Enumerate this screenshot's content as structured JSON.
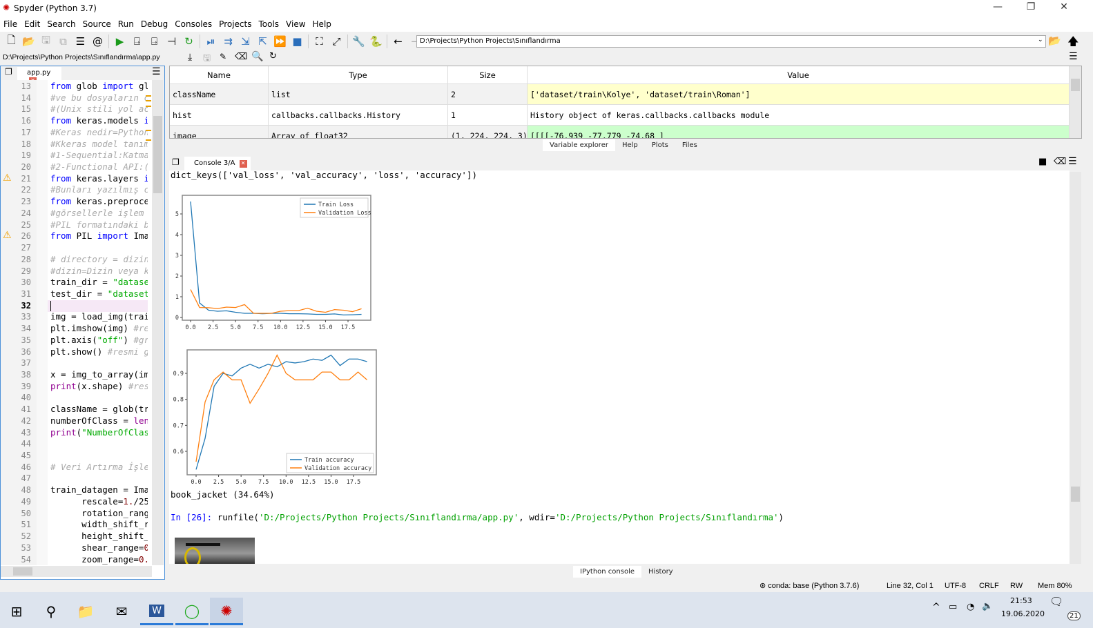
{
  "window": {
    "title": "Spyder (Python 3.7)",
    "minimize": "—",
    "restore": "❐",
    "close": "✕"
  },
  "menu": [
    "File",
    "Edit",
    "Search",
    "Source",
    "Run",
    "Debug",
    "Consoles",
    "Projects",
    "Tools",
    "View",
    "Help"
  ],
  "toolbar": {
    "path": "D:\\Projects\\Python Projects\\Sınıflandırma",
    "icons": [
      "new-file",
      "open-file",
      "save",
      "save-all",
      "outline",
      "at",
      "run",
      "run-cell",
      "run-cell-advance",
      "run-selection",
      "rerun",
      "debug",
      "step",
      "step-into",
      "step-return",
      "continue",
      "stop",
      "maximize",
      "fullscreen",
      "preferences",
      "python-path",
      "back",
      "forward"
    ]
  },
  "editor": {
    "file_path": "D:\\Projects\\Python Projects\\Sınıflandırma\\app.py",
    "tab": "app.py",
    "current_line": 32,
    "lines": [
      {
        "n": 13,
        "s": [
          [
            "from ",
            "k"
          ],
          [
            "glob ",
            ""
          ],
          [
            "import ",
            "k"
          ],
          [
            "glob",
            ""
          ]
        ]
      },
      {
        "n": 14,
        "s": [
          [
            "#ve bu dosyaların c",
            "c"
          ]
        ]
      },
      {
        "n": 15,
        "s": [
          [
            "#(Unix stili yol ac",
            "c"
          ]
        ]
      },
      {
        "n": 16,
        "s": [
          [
            "from ",
            "k"
          ],
          [
            "keras.models ",
            ""
          ],
          [
            "import",
            "k"
          ]
        ]
      },
      {
        "n": 17,
        "s": [
          [
            "#Keras nedir=Python",
            "c"
          ]
        ]
      },
      {
        "n": 18,
        "s": [
          [
            "#Kkeras model tanım",
            "c"
          ]
        ]
      },
      {
        "n": 19,
        "s": [
          [
            "#1-Sequential:Katma",
            "c"
          ]
        ]
      },
      {
        "n": 20,
        "s": [
          [
            "#2-Functional API:(",
            "c"
          ]
        ]
      },
      {
        "n": 21,
        "s": [
          [
            "from ",
            "k"
          ],
          [
            "keras.layers ",
            ""
          ],
          [
            "import",
            "k"
          ]
        ],
        "warn": true
      },
      {
        "n": 22,
        "s": [
          [
            "#Bunları yazılmış c",
            "c"
          ]
        ]
      },
      {
        "n": 23,
        "s": [
          [
            "from ",
            "k"
          ],
          [
            "keras.preprocessing",
            ""
          ]
        ]
      },
      {
        "n": 24,
        "s": [
          [
            "#görsellerle işlem",
            "c"
          ]
        ]
      },
      {
        "n": 25,
        "s": [
          [
            "#PIL formatındaki b",
            "c"
          ]
        ]
      },
      {
        "n": 26,
        "s": [
          [
            "from ",
            "k"
          ],
          [
            "PIL ",
            ""
          ],
          [
            "import ",
            "k"
          ],
          [
            "Image",
            ""
          ]
        ],
        "warn": true
      },
      {
        "n": 27,
        "s": []
      },
      {
        "n": 28,
        "s": [
          [
            "# directory = dizin",
            "c"
          ]
        ]
      },
      {
        "n": 29,
        "s": [
          [
            "#dizin=Dizin veya k",
            "c"
          ]
        ]
      },
      {
        "n": 30,
        "s": [
          [
            "train_dir = ",
            ""
          ],
          [
            "\"dataset",
            "s"
          ]
        ]
      },
      {
        "n": 31,
        "s": [
          [
            "test_dir = ",
            ""
          ],
          [
            "\"dataset",
            "s"
          ]
        ]
      },
      {
        "n": 32,
        "s": []
      },
      {
        "n": 33,
        "s": [
          [
            "img = load_img(train",
            ""
          ]
        ]
      },
      {
        "n": 34,
        "s": [
          [
            "plt.imshow(img) ",
            ""
          ],
          [
            "#resim",
            "c"
          ]
        ]
      },
      {
        "n": 35,
        "s": [
          [
            "plt.axis(",
            ""
          ],
          [
            "\"off\"",
            "s"
          ],
          [
            ") ",
            ""
          ],
          [
            "#grid",
            "c"
          ]
        ]
      },
      {
        "n": 36,
        "s": [
          [
            "plt.show() ",
            ""
          ],
          [
            "#resmi g",
            "c"
          ]
        ]
      },
      {
        "n": 37,
        "s": []
      },
      {
        "n": 38,
        "s": [
          [
            "x = img_to_array(img",
            ""
          ]
        ]
      },
      {
        "n": 39,
        "s": [
          [
            "print",
            "b"
          ],
          [
            "(x.shape) ",
            ""
          ],
          [
            "#resim",
            "c"
          ]
        ]
      },
      {
        "n": 40,
        "s": []
      },
      {
        "n": 41,
        "s": [
          [
            "className = glob(tr",
            ""
          ]
        ]
      },
      {
        "n": 42,
        "s": [
          [
            "numberOfClass = ",
            ""
          ],
          [
            "len",
            "b"
          ]
        ]
      },
      {
        "n": 43,
        "s": [
          [
            "print",
            "b"
          ],
          [
            "(",
            ""
          ],
          [
            "\"NumberOfClass",
            "s"
          ]
        ]
      },
      {
        "n": 44,
        "s": []
      },
      {
        "n": 45,
        "s": []
      },
      {
        "n": 46,
        "s": [
          [
            "# Veri Artırma İşle",
            "c"
          ]
        ]
      },
      {
        "n": 47,
        "s": []
      },
      {
        "n": 48,
        "s": [
          [
            "train_datagen = Imag",
            ""
          ]
        ],
        "fold": true
      },
      {
        "n": 49,
        "s": [
          [
            "      rescale=",
            ""
          ],
          [
            "1.",
            "n"
          ],
          [
            "/255",
            ""
          ]
        ],
        "fold": true
      },
      {
        "n": 50,
        "s": [
          [
            "      rotation_range",
            ""
          ]
        ]
      },
      {
        "n": 51,
        "s": [
          [
            "      width_shift_ra",
            ""
          ]
        ]
      },
      {
        "n": 52,
        "s": [
          [
            "      height_shift_r",
            ""
          ]
        ]
      },
      {
        "n": 53,
        "s": [
          [
            "      shear_range=",
            ""
          ],
          [
            "0",
            "n"
          ]
        ]
      },
      {
        "n": 54,
        "s": [
          [
            "      zoom_range=",
            ""
          ],
          [
            "0.",
            "n"
          ]
        ]
      }
    ]
  },
  "variables": {
    "headers": [
      "Name",
      "Type",
      "Size",
      "Value"
    ],
    "rows": [
      {
        "name": "className",
        "type": "list",
        "size": "2",
        "value": "['dataset/train\\Kolye', 'dataset/train\\Roman']",
        "color": "#ffffcc"
      },
      {
        "name": "hist",
        "type": "callbacks.callbacks.History",
        "size": "1",
        "value": "History object of keras.callbacks.callbacks module",
        "color": "#ffffff"
      },
      {
        "name": "image",
        "type": "Array of float32",
        "size": "(1, 224, 224, 3)",
        "value": "[[[[-76.939     -77.779     -74.68     ]",
        "color": "#ccffcc"
      }
    ]
  },
  "top_tabs": [
    "Variable explorer",
    "Help",
    "Plots",
    "Files"
  ],
  "console": {
    "tab": "Console 3/A",
    "dict_line": "dict_keys(['val_loss', 'val_accuracy', 'loss', 'accuracy'])",
    "prediction": "book_jacket (34.64%)",
    "prompt": "In [26]: ",
    "cmd_pre": "runfile(",
    "arg1": "'D:/Projects/Python Projects/Sınıflandırma/app.py'",
    "cmd_mid": ", wdir=",
    "arg2": "'D:/Projects/Python Projects/Sınıflandırma'",
    "cmd_end": ")"
  },
  "bottom_tabs": [
    "IPython console",
    "History"
  ],
  "status": {
    "env": "conda: base (Python 3.7.6)",
    "pos": "Line 32, Col 1",
    "enc": "UTF-8",
    "eol": "CRLF",
    "rw": "RW",
    "mem": "Mem 80%"
  },
  "taskbar": {
    "time": "21:53",
    "date": "19.06.2020",
    "notifications": "21"
  },
  "chart_data": [
    {
      "type": "line",
      "x": [
        0,
        1,
        2,
        3,
        4,
        5,
        6,
        7,
        8,
        9,
        10,
        11,
        12,
        13,
        14,
        15,
        16,
        17,
        18,
        19
      ],
      "series": [
        {
          "name": "Train Loss",
          "color": "#1f77b4",
          "values": [
            5.6,
            0.7,
            0.35,
            0.3,
            0.32,
            0.25,
            0.2,
            0.2,
            0.18,
            0.2,
            0.2,
            0.18,
            0.18,
            0.17,
            0.15,
            0.15,
            0.17,
            0.12,
            0.13,
            0.15
          ]
        },
        {
          "name": "Validation Loss",
          "color": "#ff7f0e",
          "values": [
            1.35,
            0.48,
            0.47,
            0.43,
            0.5,
            0.48,
            0.62,
            0.2,
            0.2,
            0.2,
            0.3,
            0.33,
            0.33,
            0.45,
            0.3,
            0.25,
            0.38,
            0.35,
            0.28,
            0.42
          ]
        }
      ],
      "xticks": [
        "0.0",
        "2.5",
        "5.0",
        "7.5",
        "10.0",
        "12.5",
        "15.0",
        "17.5"
      ],
      "yticks": [
        "0",
        "1",
        "2",
        "3",
        "4",
        "5"
      ],
      "legend": "top-right"
    },
    {
      "type": "line",
      "x": [
        0,
        1,
        2,
        3,
        4,
        5,
        6,
        7,
        8,
        9,
        10,
        11,
        12,
        13,
        14,
        15,
        16,
        17,
        18,
        19
      ],
      "series": [
        {
          "name": "Train accuracy",
          "color": "#1f77b4",
          "values": [
            0.53,
            0.65,
            0.85,
            0.9,
            0.89,
            0.92,
            0.935,
            0.92,
            0.935,
            0.925,
            0.945,
            0.94,
            0.945,
            0.955,
            0.95,
            0.97,
            0.93,
            0.955,
            0.955,
            0.945
          ]
        },
        {
          "name": "Validation accuracy",
          "color": "#ff7f0e",
          "values": [
            0.56,
            0.79,
            0.875,
            0.905,
            0.875,
            0.875,
            0.785,
            0.84,
            0.9,
            0.97,
            0.9,
            0.875,
            0.875,
            0.875,
            0.905,
            0.905,
            0.875,
            0.875,
            0.905,
            0.875
          ]
        }
      ],
      "xticks": [
        "0.0",
        "2.5",
        "5.0",
        "7.5",
        "10.0",
        "12.5",
        "15.0",
        "17.5"
      ],
      "yticks": [
        "0.6",
        "0.7",
        "0.8",
        "0.9"
      ],
      "legend": "bottom-right"
    }
  ]
}
